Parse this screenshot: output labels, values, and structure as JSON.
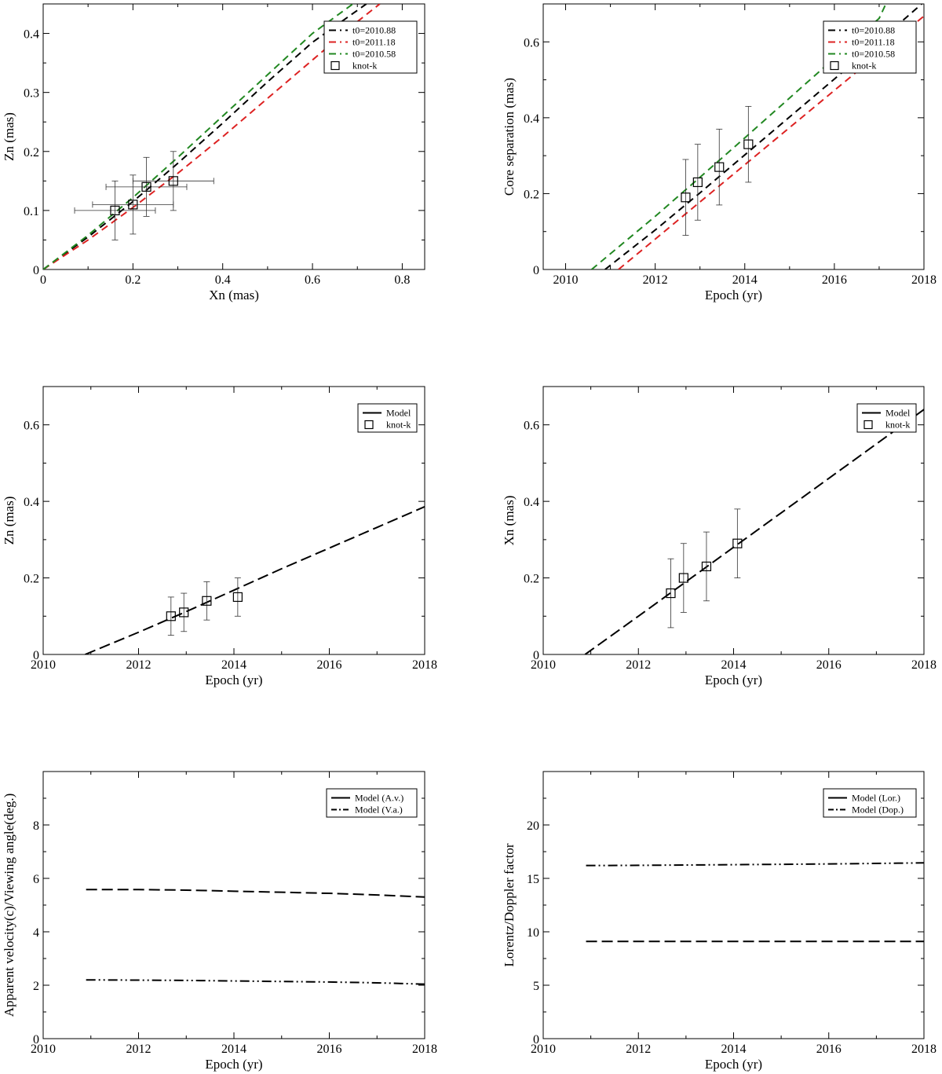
{
  "chart_data": [
    {
      "type": "line",
      "xlabel": "Xn (mas)",
      "ylabel": "Zn (mas)",
      "xlim": [
        0,
        0.85
      ],
      "ylim": [
        0,
        0.45
      ],
      "xticks": [
        0,
        0.2,
        0.4,
        0.6,
        0.8
      ],
      "xtick_labels": [
        "0",
        "0.2",
        "0.4",
        "0.6",
        "0.8"
      ],
      "yticks": [
        0,
        0.1,
        0.2,
        0.3,
        0.4
      ],
      "ytick_labels": [
        "0",
        "0.1",
        "0.2",
        "0.3",
        "0.4"
      ],
      "legend_position": "top-right",
      "series": [
        {
          "name": "t0=2010.88",
          "color": "#000000",
          "dash": "dashed",
          "marker": "line-dash",
          "x": [
            0,
            0.1,
            0.2,
            0.3,
            0.4,
            0.5,
            0.6,
            0.72
          ],
          "y": [
            0,
            0.055,
            0.115,
            0.18,
            0.248,
            0.318,
            0.385,
            0.45
          ]
        },
        {
          "name": "t0=2011.18",
          "color": "#dd2222",
          "dash": "dashed",
          "marker": "line-dash",
          "x": [
            0,
            0.1,
            0.2,
            0.3,
            0.4,
            0.5,
            0.6,
            0.7,
            0.75
          ],
          "y": [
            0,
            0.05,
            0.105,
            0.163,
            0.225,
            0.29,
            0.355,
            0.42,
            0.45
          ]
        },
        {
          "name": "t0=2010.58",
          "color": "#228822",
          "dash": "dashed",
          "marker": "line-dash",
          "x": [
            0,
            0.1,
            0.2,
            0.3,
            0.4,
            0.5,
            0.6,
            0.69
          ],
          "y": [
            0,
            0.058,
            0.122,
            0.19,
            0.26,
            0.33,
            0.4,
            0.45
          ]
        },
        {
          "name": "knot-k",
          "type": "scatter",
          "marker": "square",
          "x": [
            0.16,
            0.2,
            0.23,
            0.29
          ],
          "y": [
            0.1,
            0.11,
            0.14,
            0.15
          ],
          "xerr": [
            0.09,
            0.09,
            0.09,
            0.09
          ],
          "yerr": [
            0.05,
            0.05,
            0.05,
            0.05
          ]
        }
      ]
    },
    {
      "type": "line",
      "xlabel": "Epoch (yr)",
      "ylabel": "Core separation (mas)",
      "xlim": [
        2009.5,
        2018
      ],
      "ylim": [
        0,
        0.7
      ],
      "xticks": [
        2010,
        2012,
        2014,
        2016,
        2018
      ],
      "xtick_labels": [
        "2010",
        "2012",
        "2014",
        "2016",
        "2018"
      ],
      "yticks": [
        0,
        0.2,
        0.4,
        0.6
      ],
      "ytick_labels": [
        "0",
        "0.2",
        "0.4",
        "0.6"
      ],
      "legend_position": "top-right",
      "series": [
        {
          "name": "t0=2010.88",
          "color": "#000000",
          "dash": "dashed",
          "marker": "line-dash",
          "x": [
            2010.88,
            2012,
            2013,
            2014,
            2015,
            2016,
            2017,
            2017.95
          ],
          "y": [
            0,
            0.104,
            0.202,
            0.302,
            0.402,
            0.502,
            0.602,
            0.7
          ]
        },
        {
          "name": "t0=2011.18",
          "color": "#dd2222",
          "dash": "dashed",
          "marker": "line-dash",
          "x": [
            2011.18,
            2012,
            2013,
            2014,
            2015,
            2016,
            2017,
            2018
          ],
          "y": [
            0,
            0.08,
            0.178,
            0.276,
            0.374,
            0.472,
            0.57,
            0.668
          ]
        },
        {
          "name": "t0=2010.58",
          "color": "#228822",
          "dash": "dashed",
          "marker": "line-dash",
          "x": [
            2010.58,
            2012,
            2013,
            2014,
            2015,
            2016,
            2017,
            2017.15
          ],
          "y": [
            0,
            0.14,
            0.243,
            0.347,
            0.452,
            0.557,
            0.662,
            0.7
          ]
        },
        {
          "name": "knot-k",
          "type": "scatter",
          "marker": "square",
          "x": [
            2012.68,
            2012.95,
            2013.43,
            2014.08
          ],
          "y": [
            0.19,
            0.23,
            0.27,
            0.33
          ],
          "yerr": [
            0.1,
            0.1,
            0.1,
            0.1
          ]
        }
      ]
    },
    {
      "type": "line",
      "xlabel": "Epoch (yr)",
      "ylabel": "Zn (mas)",
      "xlim": [
        2010,
        2018
      ],
      "ylim": [
        0,
        0.7
      ],
      "xticks": [
        2010,
        2012,
        2014,
        2016,
        2018
      ],
      "xtick_labels": [
        "2010",
        "2012",
        "2014",
        "2016",
        "2018"
      ],
      "yticks": [
        0,
        0.2,
        0.4,
        0.6
      ],
      "ytick_labels": [
        "0",
        "0.2",
        "0.4",
        "0.6"
      ],
      "legend_position": "top-right",
      "series": [
        {
          "name": "Model",
          "color": "#000000",
          "dash": "long-dash",
          "marker": "line",
          "x": [
            2010.88,
            2012,
            2013,
            2014,
            2015,
            2016,
            2017,
            2018
          ],
          "y": [
            0,
            0.058,
            0.112,
            0.168,
            0.224,
            0.278,
            0.332,
            0.386
          ]
        },
        {
          "name": "knot-k",
          "type": "scatter",
          "marker": "square",
          "x": [
            2012.68,
            2012.95,
            2013.43,
            2014.08
          ],
          "y": [
            0.1,
            0.11,
            0.14,
            0.15
          ],
          "yerr": [
            0.05,
            0.05,
            0.05,
            0.05
          ]
        }
      ]
    },
    {
      "type": "line",
      "xlabel": "Epoch (yr)",
      "ylabel": "Xn (mas)",
      "xlim": [
        2010,
        2018
      ],
      "ylim": [
        0,
        0.7
      ],
      "xticks": [
        2010,
        2012,
        2014,
        2016,
        2018
      ],
      "xtick_labels": [
        "2010",
        "2012",
        "2014",
        "2016",
        "2018"
      ],
      "yticks": [
        0,
        0.2,
        0.4,
        0.6
      ],
      "ytick_labels": [
        "0",
        "0.2",
        "0.4",
        "0.6"
      ],
      "legend_position": "top-right",
      "series": [
        {
          "name": "Model",
          "color": "#000000",
          "dash": "long-dash",
          "marker": "line",
          "x": [
            2010.88,
            2012,
            2013,
            2014,
            2015,
            2016,
            2017,
            2018
          ],
          "y": [
            0,
            0.1,
            0.19,
            0.28,
            0.37,
            0.46,
            0.55,
            0.64
          ]
        },
        {
          "name": "knot-k",
          "type": "scatter",
          "marker": "square",
          "x": [
            2012.68,
            2012.95,
            2013.43,
            2014.08
          ],
          "y": [
            0.16,
            0.2,
            0.23,
            0.29
          ],
          "yerr": [
            0.09,
            0.09,
            0.09,
            0.09
          ]
        }
      ]
    },
    {
      "type": "line",
      "xlabel": "Epoch (yr)",
      "ylabel": "Apparent velocity(c)/Viewing angle(deg.)",
      "xlim": [
        2010,
        2018
      ],
      "ylim": [
        0,
        10
      ],
      "xticks": [
        2010,
        2012,
        2014,
        2016,
        2018
      ],
      "xtick_labels": [
        "2010",
        "2012",
        "2014",
        "2016",
        "2018"
      ],
      "yticks": [
        0,
        2,
        4,
        6,
        8
      ],
      "ytick_labels": [
        "0",
        "2",
        "4",
        "6",
        "8"
      ],
      "legend_position": "top-right",
      "series": [
        {
          "name": "Model (A.v.)",
          "color": "#000000",
          "dash": "long-dash",
          "marker": "line",
          "x": [
            2010.9,
            2012,
            2013,
            2014,
            2015,
            2016,
            2017,
            2018
          ],
          "y": [
            5.58,
            5.58,
            5.56,
            5.52,
            5.48,
            5.44,
            5.38,
            5.3
          ]
        },
        {
          "name": "Model (V.a.)",
          "color": "#000000",
          "dash": "dash-dot-dot",
          "marker": "line",
          "x": [
            2010.9,
            2012,
            2013,
            2014,
            2015,
            2016,
            2017,
            2018
          ],
          "y": [
            2.2,
            2.19,
            2.18,
            2.16,
            2.14,
            2.12,
            2.09,
            2.04
          ]
        }
      ]
    },
    {
      "type": "line",
      "xlabel": "Epoch (yr)",
      "ylabel": "Lorentz/Doppler factor",
      "xlim": [
        2010,
        2018
      ],
      "ylim": [
        0,
        25
      ],
      "xticks": [
        2010,
        2012,
        2014,
        2016,
        2018
      ],
      "xtick_labels": [
        "2010",
        "2012",
        "2014",
        "2016",
        "2018"
      ],
      "yticks": [
        0,
        5,
        10,
        15,
        20
      ],
      "ytick_labels": [
        "0",
        "5",
        "10",
        "15",
        "20"
      ],
      "legend_position": "top-right",
      "series": [
        {
          "name": "Model (Lor.)",
          "color": "#000000",
          "dash": "long-dash",
          "marker": "line",
          "x": [
            2010.9,
            2012,
            2014,
            2016,
            2018
          ],
          "y": [
            9.1,
            9.1,
            9.1,
            9.1,
            9.1
          ]
        },
        {
          "name": "Model (Dop.)",
          "color": "#000000",
          "dash": "dash-dot-dot",
          "marker": "line",
          "x": [
            2010.9,
            2012,
            2014,
            2016,
            2018
          ],
          "y": [
            16.2,
            16.22,
            16.28,
            16.35,
            16.45
          ]
        }
      ]
    }
  ]
}
